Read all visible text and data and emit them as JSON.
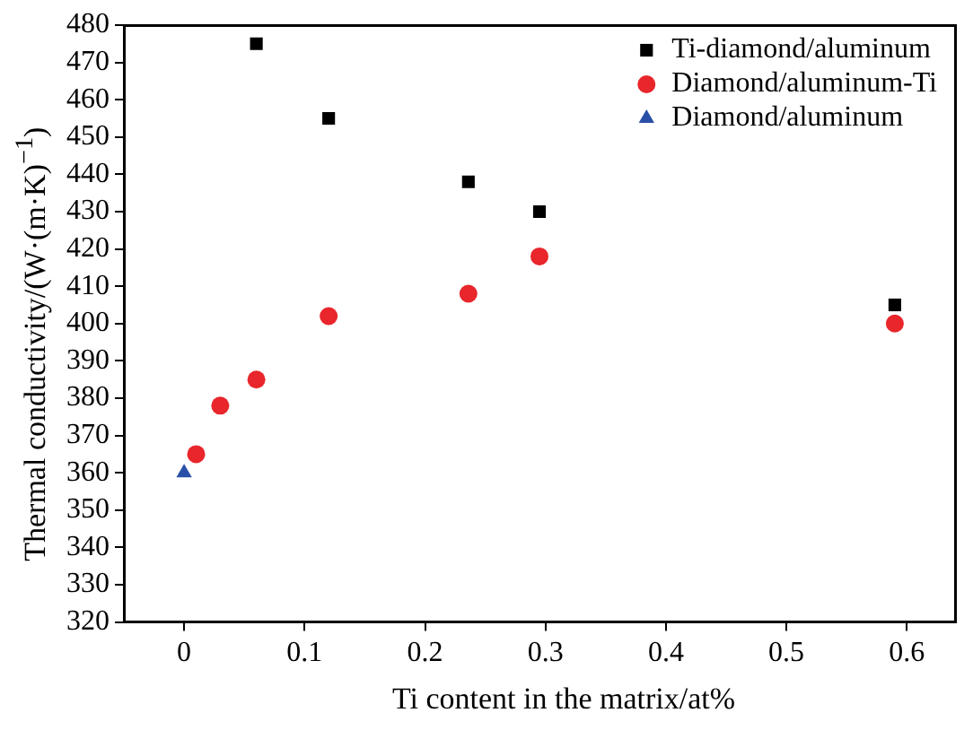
{
  "chart_data": {
    "type": "scatter",
    "xlabel": "Ti content in the matrix/at%",
    "ylabel": "Thermal conductivity/(W·(m·K)$^{−1}$)",
    "xlim": [
      -0.05,
      0.64
    ],
    "xticks": [
      0,
      0.1,
      0.2,
      0.3,
      0.4,
      0.5,
      0.6
    ],
    "ylim": [
      320,
      480
    ],
    "yticks": [
      320,
      330,
      340,
      350,
      360,
      370,
      380,
      390,
      400,
      410,
      420,
      430,
      440,
      450,
      460,
      470,
      480
    ],
    "grid": false,
    "legend": "top right",
    "series": [
      {
        "name": "Ti-diamond/aluminum",
        "color": "#000000",
        "marker": "square",
        "x": [
          0.06,
          0.12,
          0.236,
          0.295,
          0.59
        ],
        "values": [
          475,
          455,
          438,
          430,
          405
        ]
      },
      {
        "name": "Diamond/aluminum-Ti",
        "color": "#e8262b",
        "marker": "circle",
        "x": [
          0.01,
          0.03,
          0.06,
          0.12,
          0.236,
          0.295,
          0.59
        ],
        "values": [
          365,
          378,
          385,
          402,
          408,
          418,
          400
        ]
      },
      {
        "name": "Diamond/aluminum",
        "color": "#2a4fa8",
        "marker": "triangle",
        "x": [
          0
        ],
        "values": [
          360
        ]
      }
    ]
  }
}
